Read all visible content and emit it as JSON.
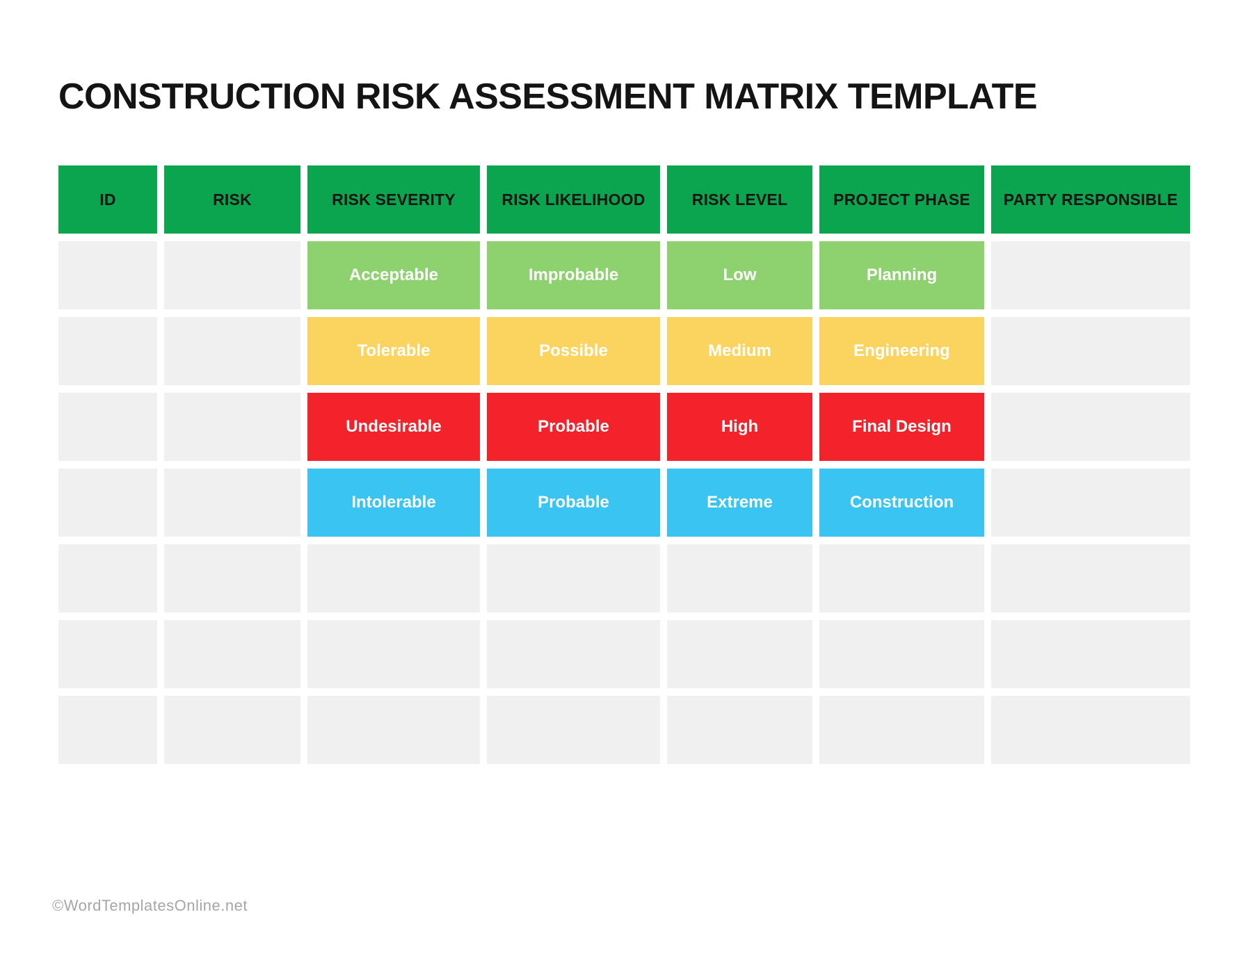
{
  "page": {
    "title": "CONSTRUCTION RISK ASSESSMENT MATRIX TEMPLATE",
    "watermark": "©WordTemplatesOnline.net"
  },
  "colors": {
    "header_bg": "#0AA54E",
    "header_text": "#141414",
    "cell_text": "#FFFFFF",
    "row_green": "#8ED16F",
    "row_yellow": "#FBD45F",
    "row_red": "#F2232A",
    "row_blue": "#3AC4F2",
    "empty_cell": "#F0F0F0"
  },
  "table": {
    "columns": [
      {
        "key": "id",
        "label": "ID"
      },
      {
        "key": "risk",
        "label": "RISK"
      },
      {
        "key": "severity",
        "label": "RISK SEVERITY"
      },
      {
        "key": "likelihood",
        "label": "RISK LIKELIHOOD"
      },
      {
        "key": "level",
        "label": "RISK LEVEL"
      },
      {
        "key": "phase",
        "label": "PROJECT PHASE"
      },
      {
        "key": "party",
        "label": "PARTY RESPONSIBLE"
      }
    ],
    "rows": [
      {
        "tone": "green",
        "id": "",
        "risk": "",
        "severity": "Acceptable",
        "likelihood": "Improbable",
        "level": "Low",
        "phase": "Planning",
        "party": ""
      },
      {
        "tone": "yellow",
        "id": "",
        "risk": "",
        "severity": "Tolerable",
        "likelihood": "Possible",
        "level": "Medium",
        "phase": "Engineering",
        "party": ""
      },
      {
        "tone": "red",
        "id": "",
        "risk": "",
        "severity": "Undesirable",
        "likelihood": "Probable",
        "level": "High",
        "phase": "Final Design",
        "party": ""
      },
      {
        "tone": "blue",
        "id": "",
        "risk": "",
        "severity": "Intolerable",
        "likelihood": "Probable",
        "level": "Extreme",
        "phase": "Construction",
        "party": ""
      },
      {
        "tone": "empty",
        "id": "",
        "risk": "",
        "severity": "",
        "likelihood": "",
        "level": "",
        "phase": "",
        "party": ""
      },
      {
        "tone": "empty",
        "id": "",
        "risk": "",
        "severity": "",
        "likelihood": "",
        "level": "",
        "phase": "",
        "party": ""
      },
      {
        "tone": "empty",
        "id": "",
        "risk": "",
        "severity": "",
        "likelihood": "",
        "level": "",
        "phase": "",
        "party": ""
      }
    ]
  }
}
